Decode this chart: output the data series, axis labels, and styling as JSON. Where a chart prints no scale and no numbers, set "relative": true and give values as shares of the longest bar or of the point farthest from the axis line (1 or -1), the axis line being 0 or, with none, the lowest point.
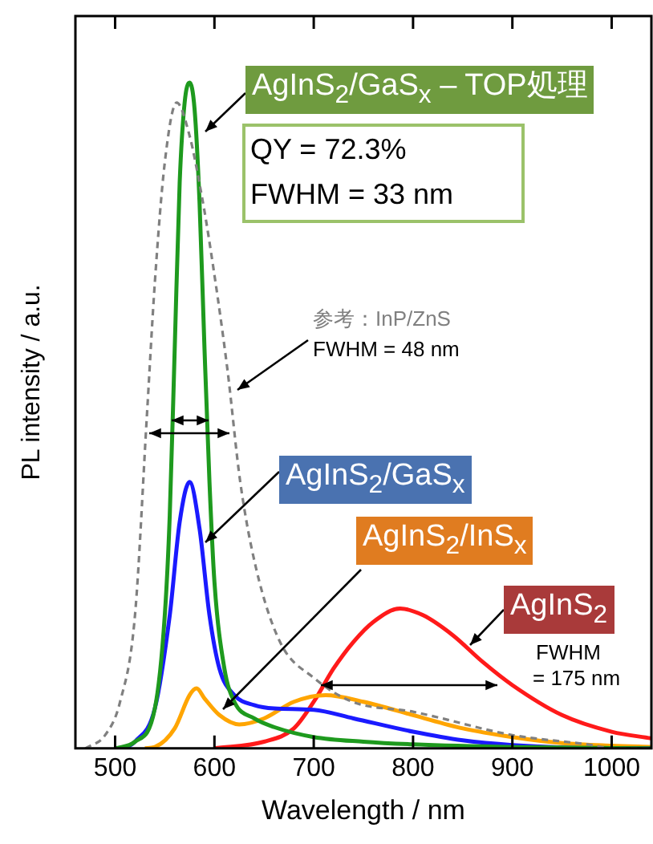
{
  "chart_data": {
    "type": "line",
    "xlabel": "Wavelength / nm",
    "ylabel": "PL intensity / a.u.",
    "relative": true,
    "xlim": [
      460,
      1040
    ],
    "xticks": [
      500,
      600,
      700,
      800,
      900,
      1000
    ],
    "marker": "none",
    "series": [
      {
        "name": "参考：InP/ZnS",
        "color": "#808080",
        "line_style": "dashed",
        "x": [
          470,
          490,
          505,
          520,
          532,
          540,
          550,
          562,
          575,
          586,
          594,
          613,
          626,
          642,
          666,
          700,
          739,
          800,
          900,
          980,
          1000,
          1040
        ],
        "values": [
          0,
          0.02,
          0.07,
          0.2,
          0.5,
          0.7,
          0.88,
          0.97,
          0.92,
          0.84,
          0.77,
          0.57,
          0.4,
          0.27,
          0.16,
          0.106,
          0.07,
          0.055,
          0.02,
          0.005,
          0,
          0
        ]
      },
      {
        "name": "AgInS$_{2}$/GaS$_{x}$ – TOP処理",
        "color": "#1e9a1e",
        "line_style": "solid",
        "x": [
          500,
          520,
          540,
          550,
          555,
          560,
          565,
          570,
          575,
          580,
          585,
          590,
          595,
          600,
          610,
          620,
          640,
          660,
          700,
          750,
          800,
          900,
          1040
        ],
        "values": [
          0,
          0.01,
          0.06,
          0.2,
          0.35,
          0.6,
          0.85,
          0.97,
          1,
          0.96,
          0.82,
          0.6,
          0.4,
          0.25,
          0.12,
          0.07,
          0.045,
          0.032,
          0.017,
          0.01,
          0.006,
          0.002,
          0
        ]
      },
      {
        "name": "AgInS$_{2}$/GaS$_{x}$",
        "color": "#1a1aff",
        "line_style": "solid",
        "x": [
          510,
          520,
          540,
          555,
          565,
          575,
          585,
          595,
          605,
          620,
          640,
          660,
          700,
          740,
          800,
          850,
          900,
          1000,
          1040
        ],
        "values": [
          0,
          0.01,
          0.06,
          0.2,
          0.34,
          0.4,
          0.33,
          0.2,
          0.12,
          0.08,
          0.065,
          0.06,
          0.058,
          0.045,
          0.025,
          0.012,
          0.005,
          0,
          0
        ]
      },
      {
        "name": "AgInS$_{2}$/InS$_{x}$",
        "color": "#ffa500",
        "line_style": "solid",
        "x": [
          530,
          540,
          560,
          575,
          582,
          590,
          605,
          625,
          650,
          680,
          712,
          750,
          800,
          850,
          900,
          950,
          1000,
          1040
        ],
        "values": [
          0,
          0.002,
          0.03,
          0.08,
          0.09,
          0.075,
          0.05,
          0.036,
          0.045,
          0.07,
          0.08,
          0.07,
          0.05,
          0.03,
          0.017,
          0.008,
          0.004,
          0.002
        ]
      },
      {
        "name": "AgInS$_{2}$",
        "color": "#ff1a1a",
        "line_style": "solid",
        "x": [
          600,
          650,
          680,
          700,
          720,
          740,
          760,
          787,
          810,
          840,
          870,
          900,
          950,
          1000,
          1040
        ],
        "values": [
          0,
          0.01,
          0.03,
          0.07,
          0.12,
          0.16,
          0.19,
          0.21,
          0.2,
          0.17,
          0.13,
          0.095,
          0.05,
          0.025,
          0.015
        ]
      }
    ],
    "annotations": [
      "QY = 72.3%",
      "FWHM = 33 nm",
      "FWHM = 48 nm",
      "FWHM",
      "= 175 nm"
    ]
  }
}
